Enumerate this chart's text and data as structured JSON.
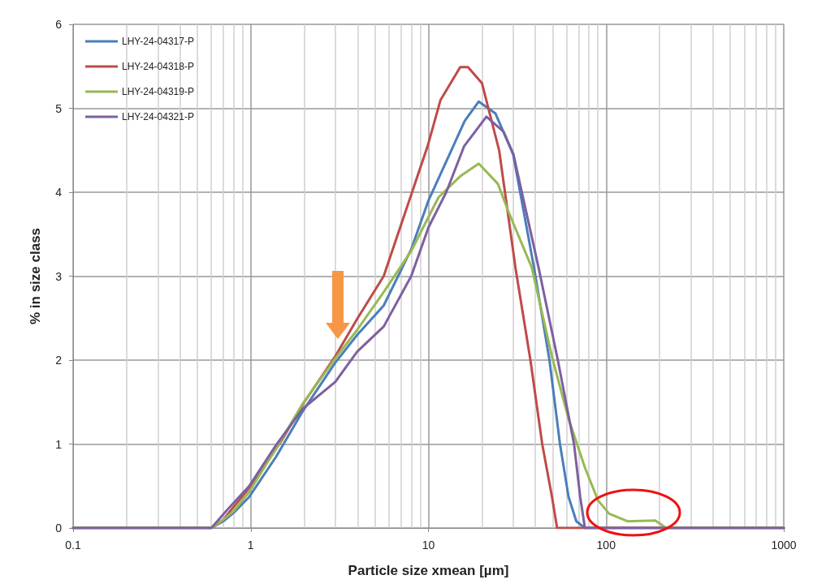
{
  "chart_data": {
    "type": "line",
    "xlabel": "Particle size xmean [µm]",
    "ylabel": "% in size class",
    "log": "x",
    "xlim": [
      0.1,
      1000
    ],
    "xticks": [
      0.1,
      1,
      10,
      100,
      1000
    ],
    "ylim": [
      0,
      6
    ],
    "yticks": [
      0,
      1,
      2,
      3,
      4,
      5,
      6
    ],
    "grid": true,
    "legend": "top left",
    "marker": "none",
    "line_style": "solid",
    "series": [
      {
        "name": "LHY-24-04317-P",
        "color": "#4a7ebb",
        "x": [
          0.1,
          0.6,
          0.7,
          0.8,
          0.98,
          1.39,
          1.96,
          2.99,
          3.97,
          5.6,
          8,
          10,
          13.8,
          16,
          19.2,
          23.8,
          30,
          39.3,
          48,
          55,
          61.5,
          68,
          76,
          1000
        ],
        "values": [
          0,
          0,
          0.08,
          0.18,
          0.37,
          0.85,
          1.39,
          1.97,
          2.3,
          2.65,
          3.32,
          3.9,
          4.55,
          4.85,
          5.08,
          4.94,
          4.45,
          3.1,
          2.0,
          1.0,
          0.37,
          0.08,
          0,
          0
        ]
      },
      {
        "name": "LHY-24-04318-P",
        "color": "#be4b48",
        "x": [
          0.1,
          0.6,
          0.7,
          0.8,
          1,
          1.5,
          2,
          3,
          3.97,
          5.6,
          8,
          9.9,
          11.7,
          15.1,
          16.7,
          20,
          25,
          30.9,
          37.5,
          43.7,
          49.6,
          53,
          1000
        ],
        "values": [
          0,
          0,
          0.1,
          0.25,
          0.5,
          1.05,
          1.5,
          2.05,
          2.49,
          3.0,
          3.97,
          4.55,
          5.1,
          5.49,
          5.49,
          5.3,
          4.5,
          3.1,
          2.0,
          1.0,
          0.37,
          0,
          0
        ]
      },
      {
        "name": "LHY-24-04319-P",
        "color": "#98b954",
        "x": [
          0.1,
          0.6,
          0.7,
          0.8,
          0.98,
          1.39,
          1.96,
          2.99,
          3.97,
          5.6,
          8,
          11.4,
          15.1,
          19.2,
          24.6,
          28.2,
          38.2,
          49.6,
          61.5,
          76,
          90,
          104,
          132,
          189,
          218,
          1000
        ],
        "values": [
          0,
          0,
          0.1,
          0.2,
          0.43,
          0.95,
          1.48,
          2.02,
          2.36,
          2.81,
          3.3,
          3.94,
          4.19,
          4.34,
          4.1,
          3.77,
          3.1,
          2.04,
          1.3,
          0.72,
          0.33,
          0.17,
          0.08,
          0.09,
          0,
          0
        ]
      },
      {
        "name": "LHY-24-04321-P",
        "color": "#7d60a0",
        "x": [
          0.1,
          0.6,
          0.74,
          0.98,
          1.39,
          1.96,
          2.99,
          3.97,
          5.6,
          8,
          10,
          12.6,
          15.9,
          21.2,
          26.5,
          30.1,
          41.7,
          53.5,
          66,
          71.5,
          76,
          1000
        ],
        "values": [
          0,
          0,
          0.22,
          0.5,
          0.99,
          1.42,
          1.74,
          2.1,
          2.4,
          3.0,
          3.58,
          4.0,
          4.55,
          4.9,
          4.72,
          4.45,
          3.1,
          2.0,
          1.0,
          0.37,
          0,
          0
        ]
      }
    ]
  }
}
